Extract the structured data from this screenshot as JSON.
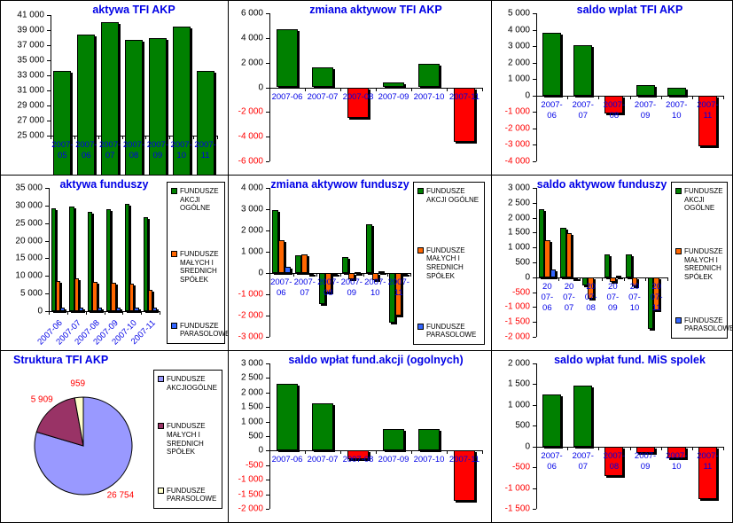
{
  "colors": {
    "positive_green": "#008000",
    "negative_red": "#ff0000",
    "series_orange": "#ff6600",
    "series_blue": "#3366ff",
    "pie_akcji": "#9999ff",
    "pie_mis": "#993366",
    "pie_parasolowe": "#ffffcc",
    "title_blue": "#0000e6",
    "category_blue": "#0000e6",
    "neg_tick_red": "#ff0000"
  },
  "chart_data": [
    {
      "type": "bar",
      "title": "aktywa TFI AKP",
      "categories": [
        "2007-05",
        "2007-06",
        "2007-07",
        "2007-08",
        "2007-09",
        "2007-10",
        "2007-11"
      ],
      "values": [
        33600,
        38400,
        40100,
        37700,
        38000,
        39500,
        33600
      ],
      "color_pos": "#008000",
      "color_neg": "#ff0000",
      "ylim": [
        25000,
        41000
      ],
      "ytick": 2000,
      "xlabel": "",
      "ylabel": "",
      "grid": false,
      "legend": null
    },
    {
      "type": "bar",
      "title": "zmiana aktywow TFI AKP",
      "categories": [
        "2007-06",
        "2007-07",
        "2007-08",
        "2007-09",
        "2007-10",
        "2007-11"
      ],
      "values": [
        4700,
        1600,
        -2500,
        400,
        1900,
        -4400
      ],
      "color_pos": "#008000",
      "color_neg": "#ff0000",
      "ylim": [
        -6000,
        6000
      ],
      "ytick": 2000,
      "xlabel": "",
      "ylabel": "",
      "grid": false,
      "legend": null
    },
    {
      "type": "bar",
      "title": "saldo wplat TFI AKP",
      "categories": [
        "2007-06",
        "2007-07",
        "2007-08",
        "2007-09",
        "2007-10",
        "2007-11"
      ],
      "values": [
        3800,
        3050,
        -1100,
        620,
        480,
        -3100
      ],
      "color_pos": "#008000",
      "color_neg": "#ff0000",
      "ylim": [
        -4000,
        5000
      ],
      "ytick": 1000,
      "xlabel": "",
      "ylabel": "",
      "grid": false,
      "legend": null
    },
    {
      "type": "bar",
      "title": "aktywa funduszy",
      "categories": [
        "2007-06",
        "2007-07",
        "2007-08",
        "2007-09",
        "2007-10",
        "2007-11"
      ],
      "series": [
        {
          "name": "FUNDUSZE AKCJI OGÓLNE",
          "color": "#008000",
          "values": [
            29100,
            29800,
            28300,
            29000,
            30500,
            26800
          ]
        },
        {
          "name": "FUNDUSZE MAŁYCH I SREDNICH SPÓŁEK",
          "color": "#ff6600",
          "values": [
            8500,
            9200,
            8300,
            8000,
            7800,
            6000
          ]
        },
        {
          "name": "FUNDUSZE PARASOLOWE",
          "color": "#3366ff",
          "values": [
            1000,
            1000,
            1000,
            1000,
            1000,
            900
          ]
        }
      ],
      "ylim": [
        0,
        35000
      ],
      "ytick": 5000,
      "xlabel": "",
      "ylabel": "",
      "grid": false,
      "legend": "right"
    },
    {
      "type": "bar",
      "title": "zmiana aktywow funduszy",
      "categories": [
        "2007-06",
        "2007-07",
        "2007-08",
        "2007-09",
        "2007-10",
        "2007-11"
      ],
      "series": [
        {
          "name": "FUNDUSZE AKCJI OGÓLNE",
          "color": "#008000",
          "values": [
            2950,
            830,
            -1440,
            760,
            2300,
            -2320
          ]
        },
        {
          "name": "FUNDUSZE MAŁYCH I SREDNICH SPÓŁEK",
          "color": "#ff6600",
          "values": [
            1550,
            860,
            -900,
            -300,
            -350,
            -2000
          ]
        },
        {
          "name": "FUNDUSZE PARASOLOWE",
          "color": "#3366ff",
          "values": [
            280,
            -60,
            -30,
            30,
            80,
            -40
          ]
        }
      ],
      "ylim": [
        -3000,
        4000
      ],
      "ytick": 1000,
      "xlabel": "",
      "ylabel": "",
      "grid": false,
      "legend": "right"
    },
    {
      "type": "bar",
      "title": "saldo aktywow funduszy",
      "categories": [
        "2007-06",
        "2007-07",
        "2007-08",
        "2007-09",
        "2007-10",
        "2007-11"
      ],
      "series": [
        {
          "name": "FUNDUSZE AKCJI OGÓLNE",
          "color": "#008000",
          "values": [
            2300,
            1650,
            -280,
            760,
            760,
            -1730
          ]
        },
        {
          "name": "FUNDUSZE MAŁYCH I SREDNICH SPÓŁEK",
          "color": "#ff6600",
          "values": [
            1250,
            1480,
            -720,
            -160,
            -300,
            -1100
          ]
        },
        {
          "name": "FUNDUSZE PARASOLOWE",
          "color": "#3366ff",
          "values": [
            270,
            -30,
            0,
            60,
            0,
            0
          ]
        }
      ],
      "ylim": [
        -2000,
        3000
      ],
      "ytick": 500,
      "xlabel": "",
      "ylabel": "",
      "grid": false,
      "legend": "right"
    },
    {
      "type": "pie",
      "title": "Struktura TFI AKP",
      "labels": [
        "FUNDUSZE AKCJIOGÓLNE",
        "FUNDUSZE MAŁYCH I SREDNICH SPÓŁEK",
        "FUNDUSZE PARASOLOWE"
      ],
      "values": [
        26754,
        5909,
        959
      ],
      "value_labels": [
        "26 754",
        "5 909",
        "959"
      ],
      "colors": [
        "#9999ff",
        "#993366",
        "#ffffcc"
      ],
      "legend": "right"
    },
    {
      "type": "bar",
      "title": "saldo wpłat fund.akcji (ogolnych)",
      "categories": [
        "2007-06",
        "2007-07",
        "2007-08",
        "2007-09",
        "2007-10",
        "2007-11"
      ],
      "values": [
        2300,
        1620,
        -300,
        730,
        730,
        -1730
      ],
      "color_pos": "#008000",
      "color_neg": "#ff0000",
      "ylim": [
        -2000,
        3000
      ],
      "ytick": 500,
      "xlabel": "",
      "ylabel": "",
      "grid": false,
      "legend": null
    },
    {
      "type": "bar",
      "title": "saldo wpłat fund. MiS spolek",
      "categories": [
        "2007-06",
        "2007-07",
        "2007-08",
        "2007-09",
        "2007-10",
        "2007-11"
      ],
      "values": [
        1250,
        1460,
        -720,
        -160,
        -280,
        -1270
      ],
      "color_pos": "#008000",
      "color_neg": "#ff0000",
      "ylim": [
        -1500,
        2000
      ],
      "ytick": 500,
      "xlabel": "",
      "ylabel": "",
      "grid": false,
      "legend": null
    }
  ]
}
